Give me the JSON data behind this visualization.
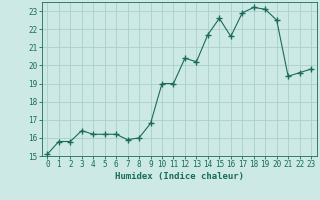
{
  "x": [
    0,
    1,
    2,
    3,
    4,
    5,
    6,
    7,
    8,
    9,
    10,
    11,
    12,
    13,
    14,
    15,
    16,
    17,
    18,
    19,
    20,
    21,
    22,
    23
  ],
  "y": [
    15.1,
    15.8,
    15.8,
    16.4,
    16.2,
    16.2,
    16.2,
    15.9,
    16.0,
    16.8,
    19.0,
    19.0,
    20.4,
    20.2,
    21.7,
    22.6,
    21.6,
    22.9,
    23.2,
    23.1,
    22.5,
    19.4,
    19.6,
    19.8
  ],
  "line_color": "#1a6b5a",
  "marker": "+",
  "marker_size": 4,
  "bg_color": "#cce9e5",
  "grid_color": "#aacfcb",
  "xlabel": "Humidex (Indice chaleur)",
  "xlim": [
    -0.5,
    23.5
  ],
  "ylim": [
    15,
    23.5
  ],
  "yticks": [
    15,
    16,
    17,
    18,
    19,
    20,
    21,
    22,
    23
  ],
  "xticks": [
    0,
    1,
    2,
    3,
    4,
    5,
    6,
    7,
    8,
    9,
    10,
    11,
    12,
    13,
    14,
    15,
    16,
    17,
    18,
    19,
    20,
    21,
    22,
    23
  ],
  "tick_color": "#1a6b5a",
  "label_fontsize": 6.5,
  "tick_fontsize": 5.5
}
